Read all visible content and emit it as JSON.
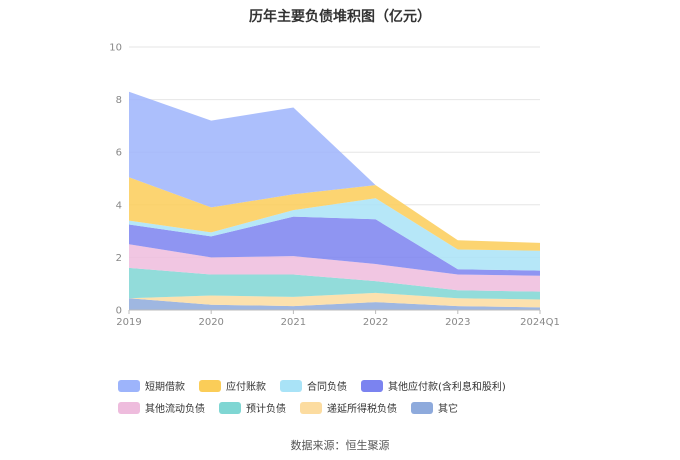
{
  "chart_data": {
    "type": "area",
    "stacked": true,
    "title": "历年主要负债堆积图（亿元）",
    "categories": [
      "2019",
      "2020",
      "2021",
      "2022",
      "2023",
      "2024Q1"
    ],
    "ylim": [
      0,
      10
    ],
    "yticks": [
      0,
      2,
      4,
      6,
      8,
      10
    ],
    "grid": true,
    "legend_position": "bottom",
    "series": [
      {
        "name": "其它",
        "color": "#8eaadc",
        "values": [
          0.45,
          0.2,
          0.15,
          0.3,
          0.15,
          0.1
        ]
      },
      {
        "name": "递延所得税负债",
        "color": "#fcdca0",
        "values": [
          0.0,
          0.35,
          0.35,
          0.35,
          0.3,
          0.3
        ]
      },
      {
        "name": "预计负债",
        "color": "#7fd6d3",
        "values": [
          1.15,
          0.8,
          0.85,
          0.45,
          0.3,
          0.3
        ]
      },
      {
        "name": "其他流动负债",
        "color": "#eebcdd",
        "values": [
          0.9,
          0.65,
          0.7,
          0.65,
          0.6,
          0.6
        ]
      },
      {
        "name": "其他应付款(含利息和股利)",
        "color": "#7b83f0",
        "values": [
          0.75,
          0.8,
          1.5,
          1.7,
          0.2,
          0.2
        ]
      },
      {
        "name": "合同负债",
        "color": "#a9e3f7",
        "values": [
          0.15,
          0.15,
          0.25,
          0.8,
          0.75,
          0.75
        ]
      },
      {
        "name": "应付账款",
        "color": "#fbcd58",
        "values": [
          1.65,
          0.95,
          0.6,
          0.5,
          0.35,
          0.3
        ]
      },
      {
        "name": "短期借款",
        "color": "#9db4fb",
        "values": [
          3.25,
          3.3,
          3.3,
          0.0,
          0.0,
          0.0
        ]
      }
    ],
    "legend_order": [
      "短期借款",
      "应付账款",
      "合同负债",
      "其他应付款(含利息和股利)",
      "其他流动负债",
      "预计负债",
      "递延所得税负债",
      "其它"
    ]
  },
  "source_text": "数据来源：恒生聚源"
}
